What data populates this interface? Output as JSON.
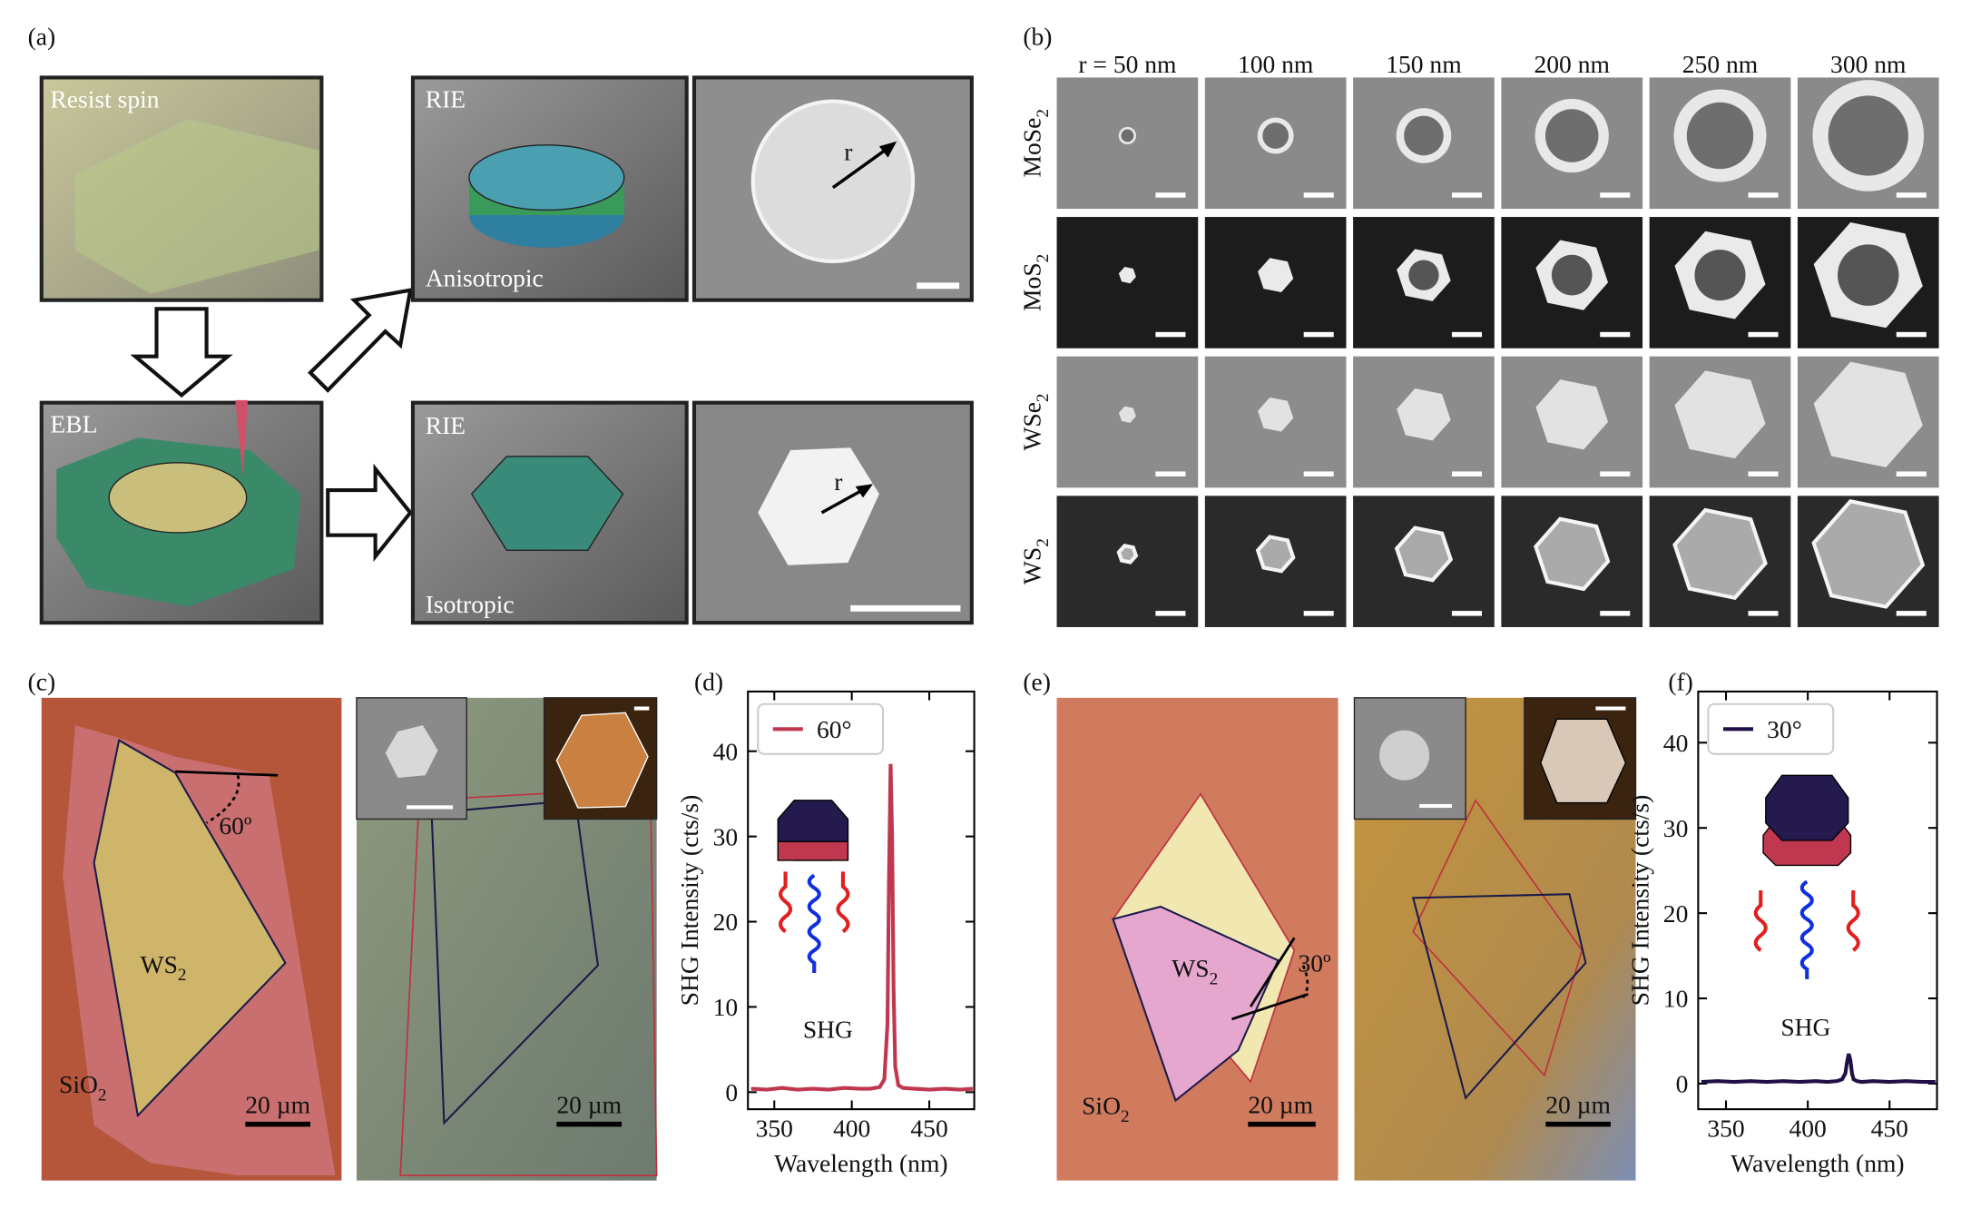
{
  "panel_labels": [
    "(a)",
    "(b)",
    "(c)",
    "(d)",
    "(e)",
    "(f)"
  ],
  "panel_a": {
    "resist": "Resist spin",
    "ebl": "EBL",
    "rie_top": "RIE",
    "anisotropic": "Anisotropic",
    "rie_bottom": "RIE",
    "isotropic": "Isotropic",
    "r_top": "r",
    "r_bottom": "r"
  },
  "panel_b": {
    "radii": [
      "r = 50 nm",
      "100 nm",
      "150 nm",
      "200 nm",
      "250 nm",
      "300 nm"
    ],
    "materials": [
      {
        "text": "MoSe",
        "sub": "2"
      },
      {
        "text": "MoS",
        "sub": "2"
      },
      {
        "text": "WSe",
        "sub": "2"
      },
      {
        "text": "WS",
        "sub": "2"
      }
    ]
  },
  "panel_c": {
    "flake": {
      "text": "WS",
      "sub": "2"
    },
    "substrate": {
      "text": "SiO",
      "sub": "2"
    },
    "angle": "60º",
    "scale_left": "20 µm",
    "scale_right": "20 µm"
  },
  "panel_e": {
    "flake": {
      "text": "WS",
      "sub": "2"
    },
    "substrate": {
      "text": "SiO",
      "sub": "2"
    },
    "angle": "30º",
    "scale_left": "20 µm",
    "scale_right": "20 µm"
  },
  "chart_data": [
    {
      "type": "line",
      "xlabel": "Wavelength (nm)",
      "ylabel": "SHG Intensity (cts/s)",
      "annotation": "SHG",
      "series": [
        {
          "name": "60°",
          "color": "#c0384f",
          "values": [
            0.4,
            0.3,
            0.5,
            0.3,
            0.4,
            0.3,
            0.5,
            0.4,
            0.4,
            0.6,
            1.5,
            8,
            25,
            38.5,
            30,
            12,
            3,
            0.8,
            0.5,
            0.4,
            0.3,
            0.4,
            0.3,
            0.4
          ]
        }
      ],
      "x": [
        335,
        345,
        355,
        365,
        375,
        385,
        395,
        405,
        412,
        418,
        421,
        423,
        424,
        425,
        426,
        427,
        428,
        430,
        433,
        440,
        450,
        460,
        470,
        478
      ],
      "xlim": [
        333,
        479
      ],
      "ylim": [
        -2,
        47
      ],
      "xticks": [
        350,
        400,
        450
      ],
      "yticks": [
        0,
        10,
        20,
        30,
        40
      ]
    },
    {
      "type": "line",
      "xlabel": "Wavelength (nm)",
      "ylabel": "SHG Intensity (cts/s)",
      "annotation": "SHG",
      "series": [
        {
          "name": "30°",
          "color": "#1f1147",
          "values": [
            0.2,
            0.3,
            0.2,
            0.3,
            0.2,
            0.3,
            0.2,
            0.3,
            0.2,
            0.3,
            0.5,
            1.2,
            2.5,
            3.5,
            2.8,
            1.2,
            0.5,
            0.3,
            0.2,
            0.3,
            0.2,
            0.3,
            0.2,
            0.2
          ]
        }
      ],
      "x": [
        335,
        345,
        355,
        365,
        375,
        385,
        395,
        405,
        412,
        418,
        421,
        423,
        424,
        425,
        426,
        427,
        428,
        430,
        433,
        440,
        450,
        460,
        470,
        478
      ],
      "xlim": [
        333,
        479
      ],
      "ylim": [
        -3,
        46
      ],
      "xticks": [
        350,
        400,
        450
      ],
      "yticks": [
        0,
        10,
        20,
        30,
        40
      ]
    }
  ]
}
